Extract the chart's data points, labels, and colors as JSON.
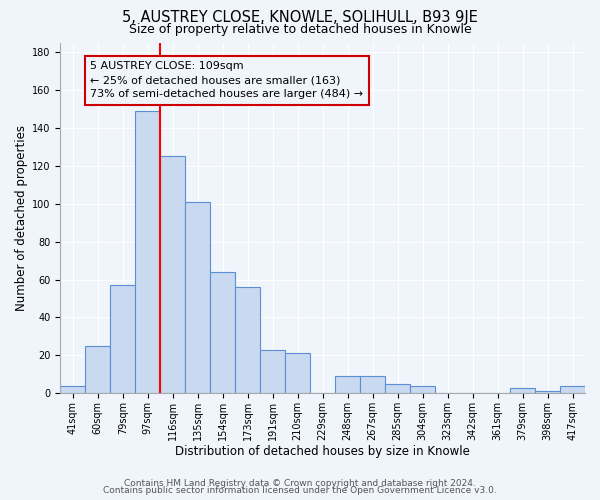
{
  "title": "5, AUSTREY CLOSE, KNOWLE, SOLIHULL, B93 9JE",
  "subtitle": "Size of property relative to detached houses in Knowle",
  "xlabel": "Distribution of detached houses by size in Knowle",
  "ylabel": "Number of detached properties",
  "bar_labels": [
    "41sqm",
    "60sqm",
    "79sqm",
    "97sqm",
    "116sqm",
    "135sqm",
    "154sqm",
    "173sqm",
    "191sqm",
    "210sqm",
    "229sqm",
    "248sqm",
    "267sqm",
    "285sqm",
    "304sqm",
    "323sqm",
    "342sqm",
    "361sqm",
    "379sqm",
    "398sqm",
    "417sqm"
  ],
  "bar_values": [
    4,
    25,
    57,
    149,
    125,
    101,
    64,
    56,
    23,
    21,
    0,
    9,
    9,
    5,
    4,
    0,
    0,
    0,
    3,
    1,
    4
  ],
  "bar_color": "#c9d9f0",
  "bar_edge_color": "#5b8fd4",
  "red_line_index": 4,
  "annotation_line1": "5 AUSTREY CLOSE: 109sqm",
  "annotation_line2": "← 25% of detached houses are smaller (163)",
  "annotation_line3": "73% of semi-detached houses are larger (484) →",
  "annotation_box_edge": "#cc0000",
  "ylim": [
    0,
    185
  ],
  "yticks": [
    0,
    20,
    40,
    60,
    80,
    100,
    120,
    140,
    160,
    180
  ],
  "footer1": "Contains HM Land Registry data © Crown copyright and database right 2024.",
  "footer2": "Contains public sector information licensed under the Open Government Licence v3.0.",
  "bg_color": "#f0f4fb",
  "grid_color": "#ffffff",
  "title_fontsize": 10.5,
  "subtitle_fontsize": 9,
  "label_fontsize": 8.5,
  "tick_fontsize": 7,
  "footer_fontsize": 6.5,
  "ann_fontsize": 8
}
